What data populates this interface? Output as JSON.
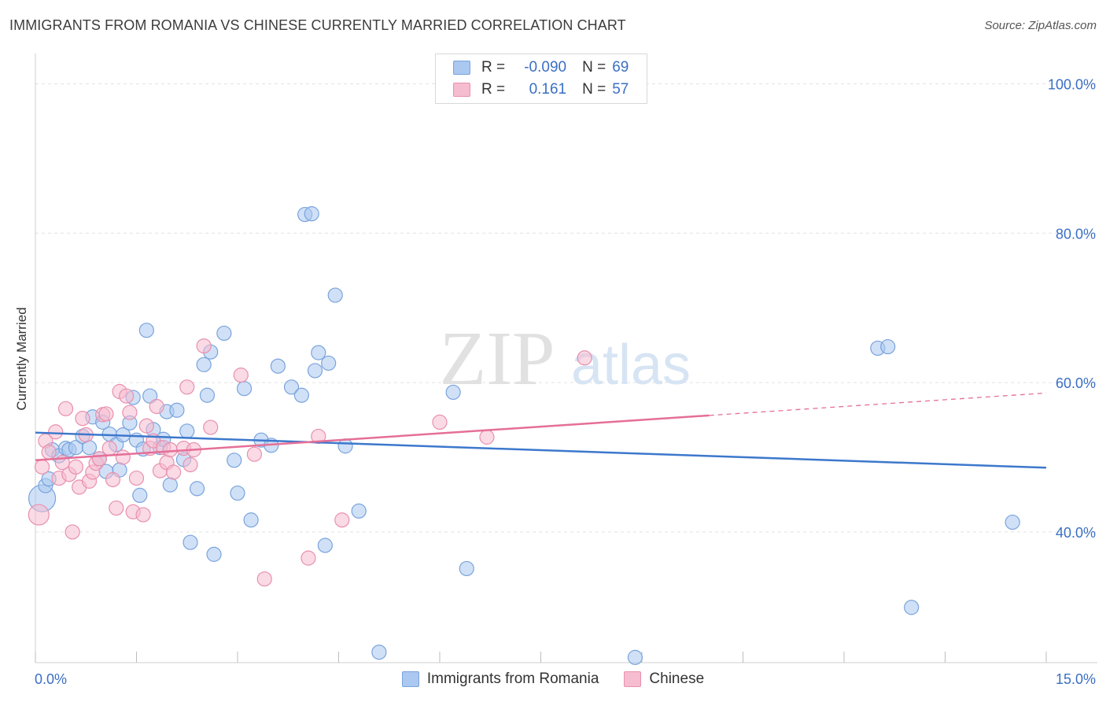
{
  "title": "IMMIGRANTS FROM ROMANIA VS CHINESE CURRENTLY MARRIED CORRELATION CHART",
  "source": "Source: ZipAtlas.com",
  "watermark": {
    "zip": "ZIP",
    "atlas": "atlas"
  },
  "colors": {
    "blue_fill": "#aac8f0",
    "blue_stroke": "#7aa3dc",
    "blue_line": "#3d78cc",
    "pink_fill": "#f6bcd0",
    "pink_stroke": "#e890ad",
    "pink_line": "#e56f97",
    "tick_label": "#3a6fc4",
    "grid": "#e2e2e2"
  },
  "stats": [
    {
      "series": "Immigrants from Romania",
      "r_label": "R =",
      "r_value": "-0.090",
      "n_label": "N =",
      "n_value": "69"
    },
    {
      "series": "Chinese",
      "r_label": "R =",
      "r_value": "0.161",
      "n_label": "N =",
      "n_value": "57"
    }
  ],
  "legend": [
    {
      "name": "Immigrants from Romania"
    },
    {
      "name": "Chinese"
    }
  ],
  "chart_data": {
    "type": "scatter",
    "title": "IMMIGRANTS FROM ROMANIA VS CHINESE CURRENTLY MARRIED CORRELATION CHART",
    "xlabel": "",
    "ylabel": "Currently Married",
    "xlim": [
      0,
      15
    ],
    "ylim": [
      22.5,
      103
    ],
    "x_ticks": [
      0,
      1.5,
      3,
      4.5,
      6,
      7.5,
      9,
      10.5,
      12,
      13.5,
      15
    ],
    "x_tick_labels": [
      {
        "value": 0,
        "label": "0.0%"
      },
      {
        "value": 15,
        "label": "15.0%"
      }
    ],
    "y_ticks": [
      {
        "value": 40,
        "label": "40.0%"
      },
      {
        "value": 60,
        "label": "60.0%"
      },
      {
        "value": 80,
        "label": "80.0%"
      },
      {
        "value": 100,
        "label": "100.0%"
      }
    ],
    "series": [
      {
        "name": "Immigrants from Romania",
        "points": [
          [
            0.1,
            44.5
          ],
          [
            0.15,
            46.2
          ],
          [
            0.2,
            47.1
          ],
          [
            0.25,
            51.0
          ],
          [
            0.35,
            50.2
          ],
          [
            0.45,
            51.2
          ],
          [
            0.5,
            51.0
          ],
          [
            0.6,
            51.3
          ],
          [
            0.7,
            52.8
          ],
          [
            0.8,
            51.3
          ],
          [
            0.85,
            55.4
          ],
          [
            0.95,
            49.8
          ],
          [
            1.0,
            54.7
          ],
          [
            1.05,
            48.1
          ],
          [
            1.1,
            53.1
          ],
          [
            1.2,
            51.7
          ],
          [
            1.25,
            48.3
          ],
          [
            1.3,
            53.0
          ],
          [
            1.4,
            54.6
          ],
          [
            1.45,
            58.0
          ],
          [
            1.5,
            52.3
          ],
          [
            1.55,
            44.9
          ],
          [
            1.6,
            51.1
          ],
          [
            1.65,
            67.0
          ],
          [
            1.7,
            58.2
          ],
          [
            1.75,
            53.7
          ],
          [
            1.85,
            51.3
          ],
          [
            1.9,
            52.4
          ],
          [
            1.95,
            56.1
          ],
          [
            2.0,
            46.3
          ],
          [
            2.1,
            56.3
          ],
          [
            2.2,
            49.7
          ],
          [
            2.25,
            53.5
          ],
          [
            2.3,
            38.6
          ],
          [
            2.4,
            45.8
          ],
          [
            2.5,
            62.4
          ],
          [
            2.55,
            58.3
          ],
          [
            2.6,
            64.1
          ],
          [
            2.65,
            37.0
          ],
          [
            2.8,
            66.6
          ],
          [
            2.95,
            49.6
          ],
          [
            3.0,
            45.2
          ],
          [
            3.1,
            59.2
          ],
          [
            3.2,
            41.6
          ],
          [
            3.35,
            52.3
          ],
          [
            3.5,
            51.6
          ],
          [
            3.6,
            62.2
          ],
          [
            3.8,
            59.4
          ],
          [
            3.95,
            58.3
          ],
          [
            4.0,
            82.5
          ],
          [
            4.1,
            82.6
          ],
          [
            4.15,
            61.6
          ],
          [
            4.2,
            64.0
          ],
          [
            4.3,
            38.2
          ],
          [
            4.35,
            62.6
          ],
          [
            4.45,
            71.7
          ],
          [
            4.6,
            51.5
          ],
          [
            4.8,
            42.8
          ],
          [
            5.1,
            23.9
          ],
          [
            6.2,
            58.7
          ],
          [
            6.4,
            35.1
          ],
          [
            8.9,
            23.2
          ],
          [
            12.5,
            64.6
          ],
          [
            12.65,
            64.8
          ],
          [
            13.0,
            29.9
          ],
          [
            14.5,
            41.3
          ]
        ],
        "trend": {
          "x0": 0.0,
          "y0": 53.3,
          "x1": 15.0,
          "y1": 48.6,
          "solid_to_x": 15.0
        }
      },
      {
        "name": "Chinese",
        "points": [
          [
            0.05,
            42.3
          ],
          [
            0.1,
            48.7
          ],
          [
            0.15,
            52.2
          ],
          [
            0.2,
            50.7
          ],
          [
            0.3,
            53.4
          ],
          [
            0.35,
            47.2
          ],
          [
            0.4,
            49.3
          ],
          [
            0.45,
            56.5
          ],
          [
            0.5,
            47.7
          ],
          [
            0.55,
            40.0
          ],
          [
            0.6,
            48.7
          ],
          [
            0.65,
            46.0
          ],
          [
            0.7,
            55.2
          ],
          [
            0.75,
            53.0
          ],
          [
            0.8,
            46.8
          ],
          [
            0.85,
            48.0
          ],
          [
            0.9,
            49.2
          ],
          [
            0.95,
            49.8
          ],
          [
            1.0,
            55.7
          ],
          [
            1.05,
            55.8
          ],
          [
            1.1,
            51.2
          ],
          [
            1.15,
            47.0
          ],
          [
            1.2,
            43.2
          ],
          [
            1.25,
            58.8
          ],
          [
            1.3,
            50.0
          ],
          [
            1.35,
            58.2
          ],
          [
            1.4,
            56.0
          ],
          [
            1.45,
            42.7
          ],
          [
            1.5,
            47.2
          ],
          [
            1.6,
            42.3
          ],
          [
            1.65,
            54.2
          ],
          [
            1.7,
            51.2
          ],
          [
            1.75,
            52.2
          ],
          [
            1.8,
            56.8
          ],
          [
            1.85,
            48.2
          ],
          [
            1.9,
            51.3
          ],
          [
            1.95,
            49.3
          ],
          [
            2.0,
            51.0
          ],
          [
            2.05,
            48.0
          ],
          [
            2.2,
            51.2
          ],
          [
            2.25,
            59.4
          ],
          [
            2.3,
            49.0
          ],
          [
            2.35,
            51.0
          ],
          [
            2.5,
            64.9
          ],
          [
            2.6,
            54.0
          ],
          [
            3.05,
            61.0
          ],
          [
            3.25,
            50.4
          ],
          [
            3.4,
            33.7
          ],
          [
            4.05,
            36.5
          ],
          [
            4.2,
            52.8
          ],
          [
            4.55,
            41.6
          ],
          [
            6.0,
            54.7
          ],
          [
            6.7,
            52.7
          ],
          [
            8.15,
            63.3
          ]
        ],
        "trend": {
          "x0": 0.0,
          "y0": 49.6,
          "x1": 15.0,
          "y1": 58.6,
          "solid_to_x": 10.0
        }
      }
    ]
  }
}
